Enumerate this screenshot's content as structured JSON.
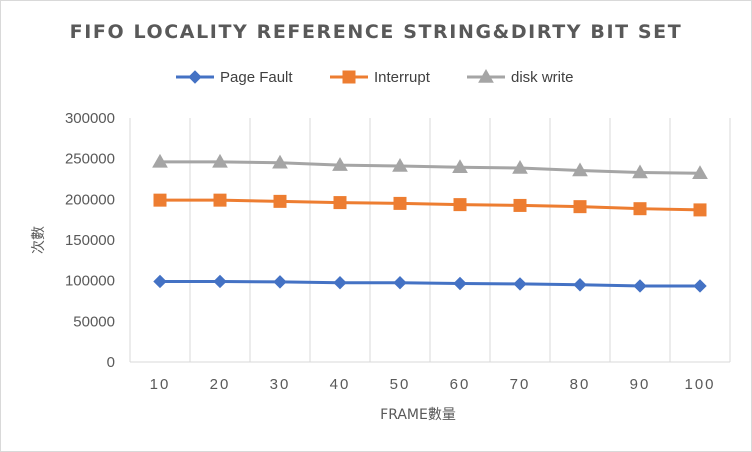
{
  "chart_data": {
    "type": "line",
    "title": "FIFO LOCALITY REFERENCE STRING&DIRTY BIT SET",
    "xlabel": "FRAME數量",
    "ylabel": "次數",
    "categories": [
      "10",
      "20",
      "30",
      "40",
      "50",
      "60",
      "70",
      "80",
      "90",
      "100"
    ],
    "ylim": [
      0,
      300000
    ],
    "yticks": [
      "0",
      "50000",
      "100000",
      "150000",
      "200000",
      "250000",
      "300000"
    ],
    "grid": "vertical",
    "legend_position": "top",
    "series": [
      {
        "name": "Page Fault",
        "color": "#4472c4",
        "marker": "diamond",
        "values": [
          99000,
          99000,
          98500,
          97500,
          97500,
          96500,
          96000,
          95000,
          93500,
          93500
        ]
      },
      {
        "name": "Interrupt",
        "color": "#ed7d31",
        "marker": "square",
        "values": [
          199000,
          199000,
          197500,
          196000,
          195000,
          193500,
          192500,
          191000,
          188500,
          187000
        ]
      },
      {
        "name": "disk write",
        "color": "#a5a5a5",
        "marker": "triangle",
        "values": [
          246000,
          246000,
          245000,
          242000,
          241000,
          239500,
          238500,
          235500,
          233000,
          232000
        ]
      }
    ]
  }
}
